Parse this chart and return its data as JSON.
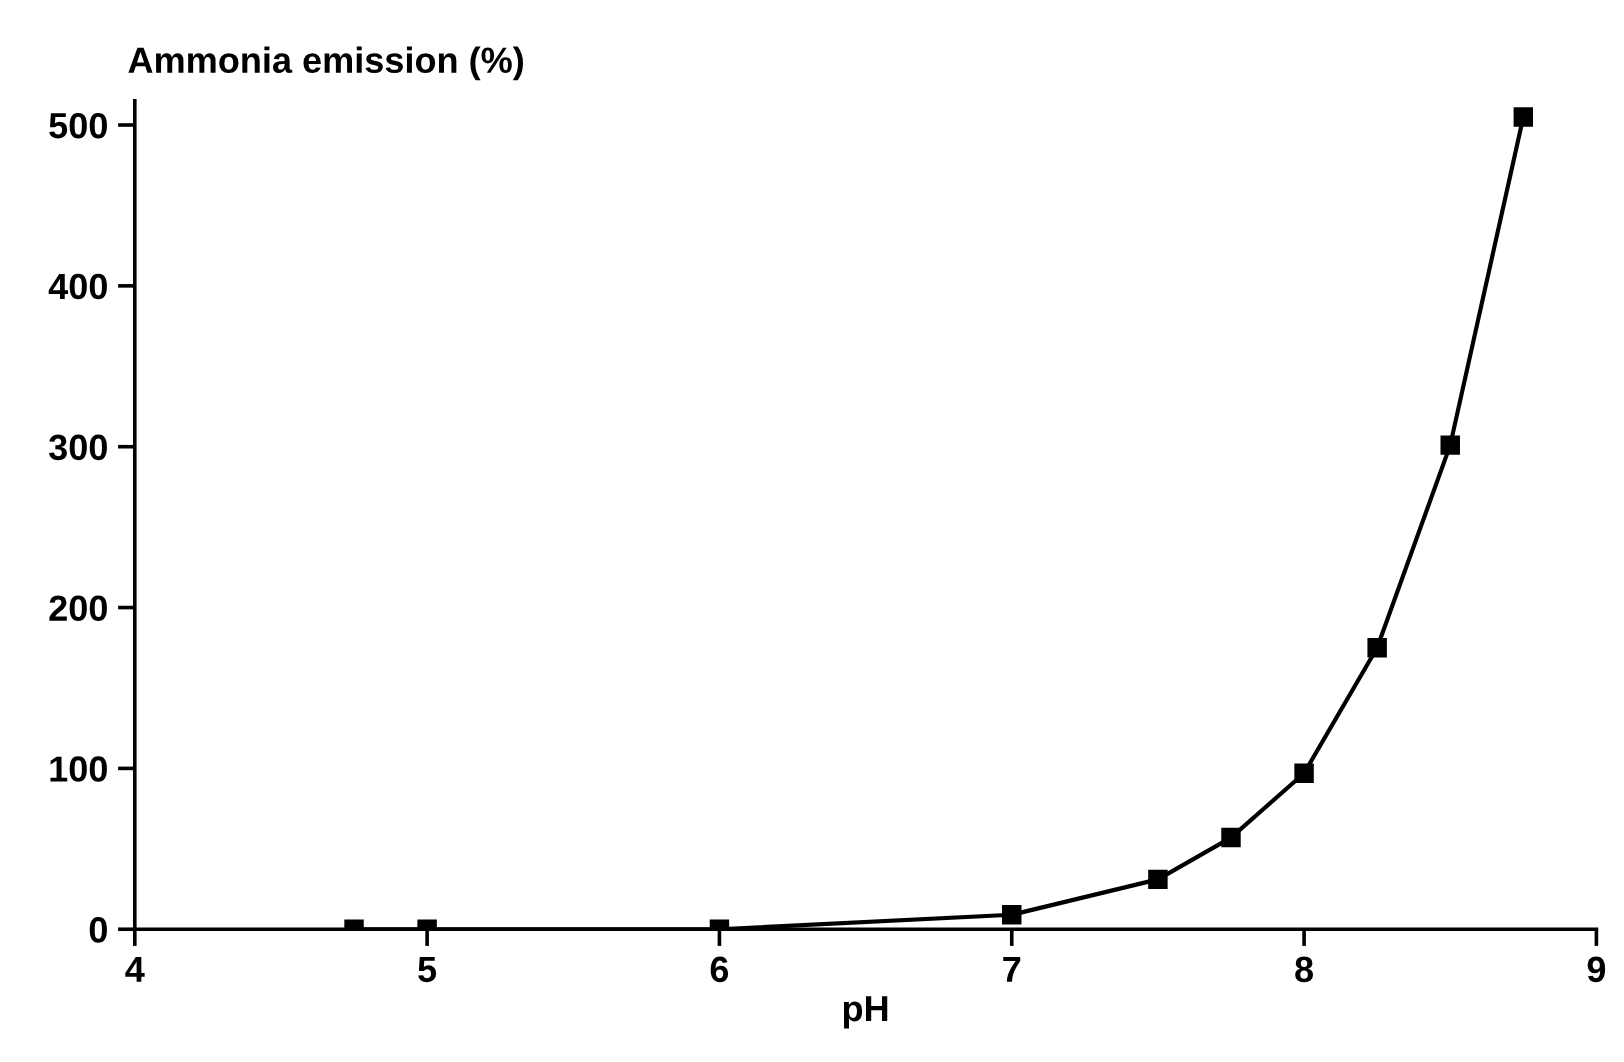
{
  "chart_data": {
    "type": "line",
    "ylabel": "Ammonia emission (%)",
    "xlabel": "pH",
    "x": [
      4.75,
      5,
      6,
      7,
      7.5,
      7.75,
      8,
      8.25,
      8.5,
      8.75
    ],
    "values": [
      0,
      0,
      0,
      9,
      31,
      57,
      97,
      175,
      301,
      505
    ],
    "color": "#000000",
    "marker": "square",
    "line_style": "solid",
    "xlim": [
      4,
      9
    ],
    "xticks": [
      4,
      5,
      6,
      7,
      8,
      9
    ],
    "ylim": [
      0,
      515
    ],
    "yticks": [
      0,
      100,
      200,
      300,
      400,
      500
    ],
    "grid": false,
    "legend": false
  }
}
